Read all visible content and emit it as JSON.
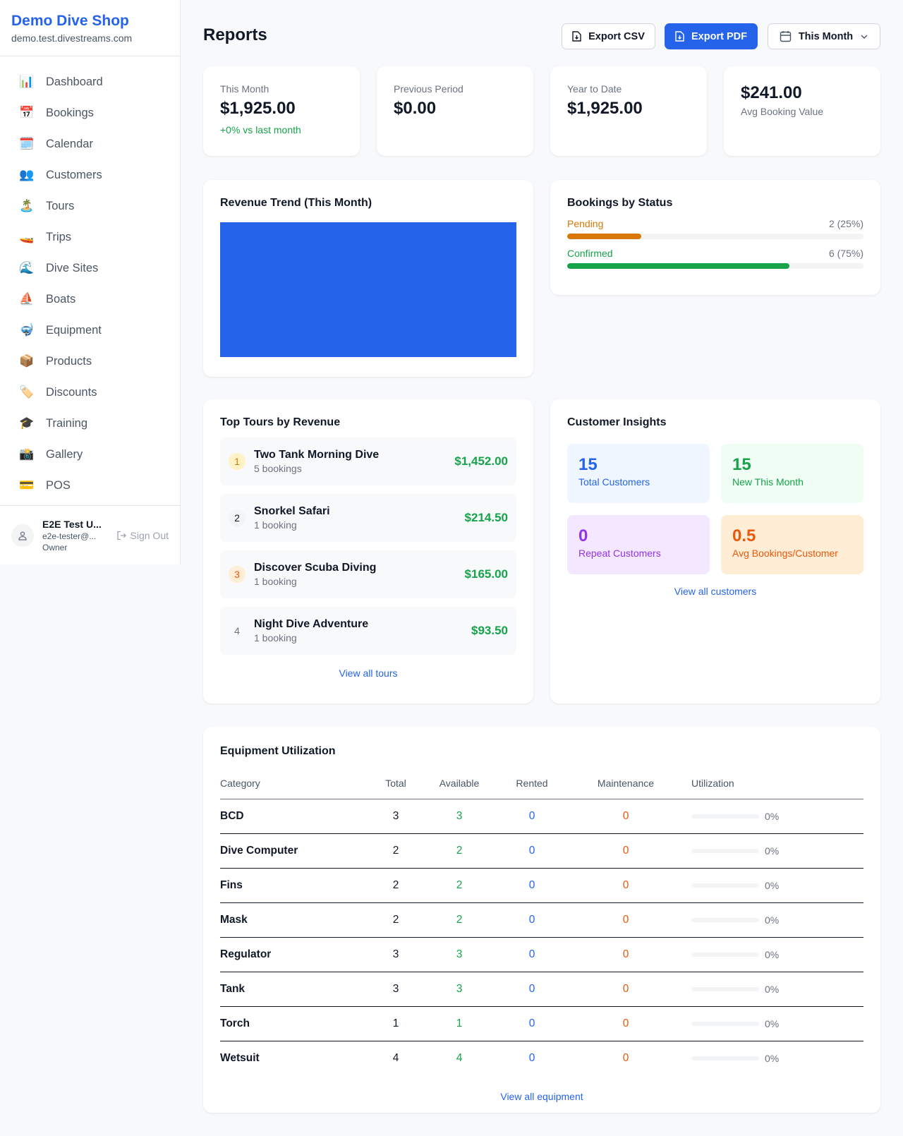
{
  "sidebar": {
    "shop_name": "Demo Dive Shop",
    "domain": "demo.test.divestreams.com",
    "items": [
      {
        "label": "Dashboard",
        "icon": "📊"
      },
      {
        "label": "Bookings",
        "icon": "📅"
      },
      {
        "label": "Calendar",
        "icon": "🗓️"
      },
      {
        "label": "Customers",
        "icon": "👥"
      },
      {
        "label": "Tours",
        "icon": "🏝️"
      },
      {
        "label": "Trips",
        "icon": "🚤"
      },
      {
        "label": "Dive Sites",
        "icon": "🌊"
      },
      {
        "label": "Boats",
        "icon": "⛵"
      },
      {
        "label": "Equipment",
        "icon": "🤿"
      },
      {
        "label": "Products",
        "icon": "📦"
      },
      {
        "label": "Discounts",
        "icon": "🏷️"
      },
      {
        "label": "Training",
        "icon": "🎓"
      },
      {
        "label": "Gallery",
        "icon": "📸"
      },
      {
        "label": "POS",
        "icon": "💳"
      }
    ],
    "user": {
      "name": "E2E Test U...",
      "email": "e2e-tester@...",
      "role": "Owner",
      "sign_out": "Sign Out"
    }
  },
  "header": {
    "title": "Reports",
    "export_csv": "Export CSV",
    "export_pdf": "Export PDF",
    "period": "This Month"
  },
  "stats": [
    {
      "label": "This Month",
      "value": "$1,925.00",
      "change": "+0% vs last month"
    },
    {
      "label": "Previous Period",
      "value": "$0.00"
    },
    {
      "label": "Year to Date",
      "value": "$1,925.00"
    },
    {
      "value": "$241.00",
      "label": "Avg Booking Value"
    }
  ],
  "revenue": {
    "title": "Revenue Trend (This Month)"
  },
  "bookings_status": {
    "title": "Bookings by Status",
    "items": [
      {
        "label": "Pending",
        "count": "2 (25%)",
        "percent": 25,
        "color": "#d97706"
      },
      {
        "label": "Confirmed",
        "count": "6 (75%)",
        "percent": 75,
        "color": "#16a34a"
      }
    ]
  },
  "top_tours": {
    "title": "Top Tours by Revenue",
    "link": "View all tours",
    "items": [
      {
        "rank": "1",
        "name": "Two Tank Morning Dive",
        "bookings": "5 bookings",
        "revenue": "$1,452.00"
      },
      {
        "rank": "2",
        "name": "Snorkel Safari",
        "bookings": "1 booking",
        "revenue": "$214.50"
      },
      {
        "rank": "3",
        "name": "Discover Scuba Diving",
        "bookings": "1 booking",
        "revenue": "$165.00"
      },
      {
        "rank": "4",
        "name": "Night Dive Adventure",
        "bookings": "1 booking",
        "revenue": "$93.50"
      }
    ]
  },
  "customers": {
    "title": "Customer Insights",
    "link": "View all customers",
    "tiles": [
      {
        "value": "15",
        "label": "Total Customers"
      },
      {
        "value": "15",
        "label": "New This Month"
      },
      {
        "value": "0",
        "label": "Repeat Customers"
      },
      {
        "value": "0.5",
        "label": "Avg Bookings/Customer"
      }
    ]
  },
  "equipment": {
    "title": "Equipment Utilization",
    "link": "View all equipment",
    "columns": [
      "Category",
      "Total",
      "Available",
      "Rented",
      "Maintenance",
      "Utilization"
    ],
    "rows": [
      {
        "category": "BCD",
        "total": "3",
        "available": "3",
        "rented": "0",
        "maintenance": "0",
        "utilization": "0%"
      },
      {
        "category": "Dive Computer",
        "total": "2",
        "available": "2",
        "rented": "0",
        "maintenance": "0",
        "utilization": "0%"
      },
      {
        "category": "Fins",
        "total": "2",
        "available": "2",
        "rented": "0",
        "maintenance": "0",
        "utilization": "0%"
      },
      {
        "category": "Mask",
        "total": "2",
        "available": "2",
        "rented": "0",
        "maintenance": "0",
        "utilization": "0%"
      },
      {
        "category": "Regulator",
        "total": "3",
        "available": "3",
        "rented": "0",
        "maintenance": "0",
        "utilization": "0%"
      },
      {
        "category": "Tank",
        "total": "3",
        "available": "3",
        "rented": "0",
        "maintenance": "0",
        "utilization": "0%"
      },
      {
        "category": "Torch",
        "total": "1",
        "available": "1",
        "rented": "0",
        "maintenance": "0",
        "utilization": "0%"
      },
      {
        "category": "Wetsuit",
        "total": "4",
        "available": "4",
        "rented": "0",
        "maintenance": "0",
        "utilization": "0%"
      }
    ]
  }
}
